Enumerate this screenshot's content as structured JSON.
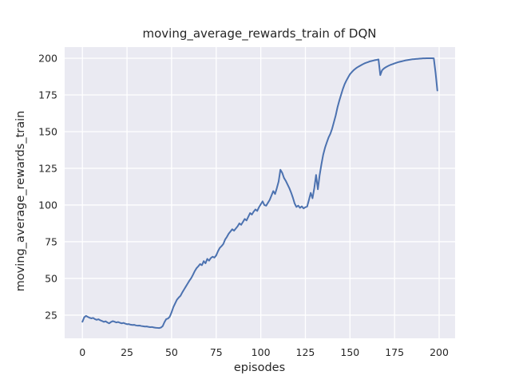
{
  "chart_data": {
    "type": "line",
    "title": "moving_average_rewards_train of DQN",
    "xlabel": "episodes",
    "ylabel": "moving_average_rewards_train",
    "x_ticks": [
      0,
      25,
      50,
      75,
      100,
      125,
      150,
      175,
      200
    ],
    "y_ticks": [
      25,
      50,
      75,
      100,
      125,
      150,
      175,
      200
    ],
    "xlim": [
      -9.95,
      208.95
    ],
    "ylim": [
      9.2,
      207.6
    ],
    "grid": true,
    "legend": false,
    "colors": {
      "line": "#4C72B0",
      "axes_background": "#EAEAF2",
      "gridline": "#FFFFFF",
      "text": "#262626",
      "figure_background": "#FFFFFF"
    },
    "series": [
      {
        "name": "moving_average_rewards_train",
        "points": [
          [
            0,
            20.5
          ],
          [
            1,
            23.5
          ],
          [
            2,
            24.5
          ],
          [
            3,
            23.8
          ],
          [
            4,
            23.2
          ],
          [
            5,
            22.8
          ],
          [
            6,
            23.1
          ],
          [
            7,
            22.3
          ],
          [
            8,
            21.8
          ],
          [
            9,
            22.2
          ],
          [
            10,
            21.5
          ],
          [
            11,
            21.0
          ],
          [
            12,
            20.4
          ],
          [
            13,
            20.8
          ],
          [
            14,
            20.0
          ],
          [
            15,
            19.4
          ],
          [
            16,
            20.3
          ],
          [
            17,
            20.9
          ],
          [
            18,
            20.5
          ],
          [
            19,
            20.0
          ],
          [
            20,
            20.3
          ],
          [
            21,
            19.8
          ],
          [
            22,
            19.4
          ],
          [
            23,
            19.7
          ],
          [
            24,
            19.2
          ],
          [
            25,
            18.8
          ],
          [
            26,
            18.9
          ],
          [
            27,
            18.5
          ],
          [
            28,
            18.3
          ],
          [
            29,
            18.4
          ],
          [
            30,
            18.0
          ],
          [
            31,
            17.8
          ],
          [
            32,
            17.9
          ],
          [
            33,
            17.6
          ],
          [
            34,
            17.4
          ],
          [
            35,
            17.2
          ],
          [
            36,
            17.3
          ],
          [
            37,
            17.0
          ],
          [
            38,
            16.8
          ],
          [
            39,
            16.9
          ],
          [
            40,
            16.6
          ],
          [
            41,
            16.4
          ],
          [
            42,
            16.3
          ],
          [
            43,
            16.2
          ],
          [
            44,
            16.5
          ],
          [
            45,
            17.5
          ],
          [
            46,
            20.2
          ],
          [
            47,
            22.3
          ],
          [
            48,
            22.7
          ],
          [
            49,
            24.0
          ],
          [
            50,
            27.0
          ],
          [
            51,
            30.5
          ],
          [
            52,
            33.0
          ],
          [
            53,
            35.5
          ],
          [
            54,
            37.0
          ],
          [
            55,
            38.2
          ],
          [
            56,
            40.5
          ],
          [
            57,
            42.5
          ],
          [
            58,
            44.5
          ],
          [
            59,
            46.5
          ],
          [
            60,
            48.5
          ],
          [
            61,
            50.2
          ],
          [
            62,
            52.5
          ],
          [
            63,
            55.0
          ],
          [
            64,
            57.0
          ],
          [
            65,
            58.3
          ],
          [
            66,
            59.8
          ],
          [
            67,
            59.0
          ],
          [
            68,
            61.8
          ],
          [
            69,
            60.3
          ],
          [
            70,
            63.3
          ],
          [
            71,
            62.1
          ],
          [
            72,
            63.9
          ],
          [
            73,
            64.8
          ],
          [
            74,
            64.2
          ],
          [
            75,
            65.7
          ],
          [
            76,
            68.5
          ],
          [
            77,
            70.8
          ],
          [
            78,
            72.0
          ],
          [
            79,
            73.5
          ],
          [
            80,
            76.5
          ],
          [
            81,
            78.3
          ],
          [
            82,
            80.5
          ],
          [
            83,
            82.0
          ],
          [
            84,
            83.5
          ],
          [
            85,
            82.5
          ],
          [
            86,
            84.0
          ],
          [
            87,
            85.5
          ],
          [
            88,
            87.5
          ],
          [
            89,
            86.5
          ],
          [
            90,
            88.5
          ],
          [
            91,
            90.5
          ],
          [
            92,
            89.5
          ],
          [
            93,
            92.0
          ],
          [
            94,
            94.5
          ],
          [
            95,
            93.5
          ],
          [
            96,
            95.5
          ],
          [
            97,
            97.0
          ],
          [
            98,
            96.0
          ],
          [
            99,
            98.5
          ],
          [
            100,
            100.5
          ],
          [
            101,
            102.5
          ],
          [
            102,
            100.0
          ],
          [
            103,
            99.5
          ],
          [
            104,
            101.5
          ],
          [
            105,
            103.5
          ],
          [
            106,
            106.5
          ],
          [
            107,
            109.5
          ],
          [
            108,
            107.5
          ],
          [
            109,
            111.5
          ],
          [
            110,
            116.0
          ],
          [
            111,
            124.0
          ],
          [
            112,
            122.0
          ],
          [
            113,
            118.5
          ],
          [
            114,
            116.5
          ],
          [
            115,
            114.0
          ],
          [
            116,
            111.5
          ],
          [
            117,
            108.5
          ],
          [
            118,
            105.0
          ],
          [
            119,
            101.0
          ],
          [
            120,
            98.7
          ],
          [
            121,
            99.6
          ],
          [
            122,
            98.1
          ],
          [
            123,
            99.1
          ],
          [
            124,
            97.7
          ],
          [
            125,
            98.5
          ],
          [
            126,
            99.0
          ],
          [
            127,
            103.5
          ],
          [
            128,
            108.3
          ],
          [
            129,
            104.6
          ],
          [
            130,
            111.5
          ],
          [
            131,
            120.5
          ],
          [
            132,
            110.7
          ],
          [
            133,
            120.4
          ],
          [
            134,
            127.8
          ],
          [
            135,
            134.3
          ],
          [
            136,
            139.0
          ],
          [
            137,
            142.6
          ],
          [
            138,
            146.0
          ],
          [
            139,
            148.5
          ],
          [
            140,
            152.0
          ],
          [
            141,
            156.5
          ],
          [
            142,
            161.0
          ],
          [
            143,
            166.5
          ],
          [
            144,
            171.0
          ],
          [
            145,
            175.0
          ],
          [
            146,
            179.0
          ],
          [
            147,
            182.3
          ],
          [
            148,
            184.8
          ],
          [
            149,
            187.0
          ],
          [
            150,
            189.1
          ],
          [
            151,
            190.5
          ],
          [
            152,
            191.8
          ],
          [
            153,
            192.8
          ],
          [
            154,
            193.7
          ],
          [
            155,
            194.4
          ],
          [
            156,
            195.1
          ],
          [
            157,
            195.8
          ],
          [
            158,
            196.4
          ],
          [
            159,
            196.9
          ],
          [
            160,
            197.3
          ],
          [
            161,
            197.8
          ],
          [
            162,
            198.1
          ],
          [
            163,
            198.4
          ],
          [
            164,
            198.7
          ],
          [
            165,
            198.9
          ],
          [
            166,
            199.2
          ],
          [
            167,
            188.5
          ],
          [
            168,
            191.8
          ],
          [
            169,
            193.0
          ],
          [
            170,
            193.8
          ],
          [
            171,
            194.5
          ],
          [
            172,
            195.1
          ],
          [
            173,
            195.6
          ],
          [
            174,
            196.0
          ],
          [
            175,
            196.5
          ],
          [
            176,
            196.9
          ],
          [
            177,
            197.3
          ],
          [
            178,
            197.6
          ],
          [
            179,
            197.9
          ],
          [
            180,
            198.2
          ],
          [
            181,
            198.5
          ],
          [
            182,
            198.7
          ],
          [
            183,
            198.9
          ],
          [
            184,
            199.1
          ],
          [
            185,
            199.3
          ],
          [
            186,
            199.4
          ],
          [
            187,
            199.5
          ],
          [
            188,
            199.6
          ],
          [
            189,
            199.7
          ],
          [
            190,
            199.8
          ],
          [
            191,
            199.9
          ],
          [
            192,
            199.9
          ],
          [
            193,
            200.0
          ],
          [
            194,
            200.0
          ],
          [
            195,
            200.0
          ],
          [
            196,
            200.0
          ],
          [
            197,
            199.9
          ],
          [
            198,
            190.0
          ],
          [
            199,
            178.0
          ]
        ]
      }
    ]
  }
}
